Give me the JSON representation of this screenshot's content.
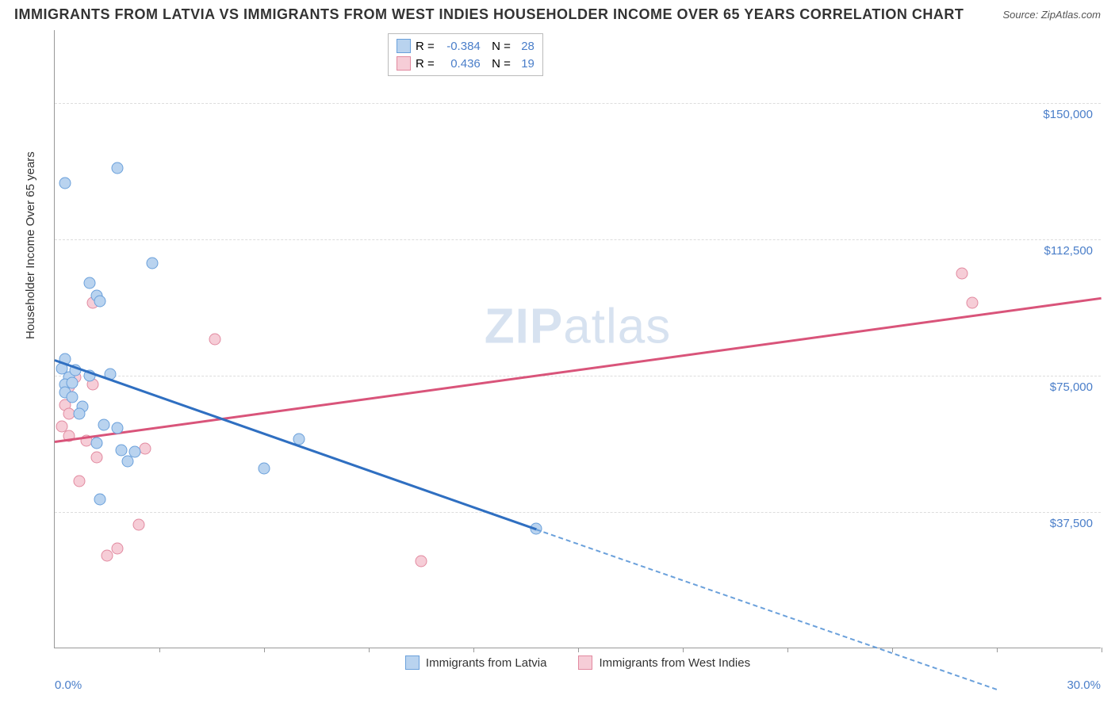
{
  "title": "IMMIGRANTS FROM LATVIA VS IMMIGRANTS FROM WEST INDIES HOUSEHOLDER INCOME OVER 65 YEARS CORRELATION CHART",
  "source": "Source: ZipAtlas.com",
  "watermark_a": "ZIP",
  "watermark_b": "atlas",
  "chart": {
    "type": "scatter-correlation",
    "ylabel": "Householder Income Over 65 years",
    "xlim": [
      0,
      30
    ],
    "ylim": [
      0,
      170000
    ],
    "x_unit": "%",
    "y_unit": "$",
    "xtick_labels": [
      "0.0%",
      "30.0%"
    ],
    "xtick_positions_pct": [
      0,
      100
    ],
    "xtick_marks_pct": [
      10,
      20,
      30,
      40,
      50,
      60,
      70,
      80,
      90,
      100
    ],
    "ytick_labels": [
      "$37,500",
      "$75,000",
      "$112,500",
      "$150,000"
    ],
    "ytick_values": [
      37500,
      75000,
      112500,
      150000
    ],
    "grid_color": "#dddddd",
    "background_color": "#ffffff",
    "axis_color": "#999999",
    "label_color": "#4a7ec9",
    "series": [
      {
        "key": "latvia",
        "name": "Immigrants from Latvia",
        "fill": "#b9d3ef",
        "stroke": "#6aa0db",
        "line_color": "#2f6fc1",
        "R": "-0.384",
        "N": "28",
        "points": [
          [
            0.3,
            128000
          ],
          [
            1.8,
            132000
          ],
          [
            2.8,
            106000
          ],
          [
            1.0,
            100500
          ],
          [
            1.2,
            97000
          ],
          [
            1.3,
            95500
          ],
          [
            0.3,
            79500
          ],
          [
            0.2,
            77000
          ],
          [
            0.4,
            74500
          ],
          [
            0.6,
            76500
          ],
          [
            1.0,
            75000
          ],
          [
            1.6,
            75500
          ],
          [
            0.3,
            72500
          ],
          [
            0.5,
            73000
          ],
          [
            0.3,
            70500
          ],
          [
            0.5,
            69000
          ],
          [
            0.8,
            66500
          ],
          [
            0.7,
            64500
          ],
          [
            1.4,
            61500
          ],
          [
            1.8,
            60500
          ],
          [
            1.9,
            54500
          ],
          [
            2.3,
            54000
          ],
          [
            2.1,
            51500
          ],
          [
            1.2,
            56500
          ],
          [
            7.0,
            57500
          ],
          [
            6.0,
            49500
          ],
          [
            1.3,
            41000
          ],
          [
            13.8,
            33000
          ]
        ],
        "trend": {
          "x1": 0.0,
          "y1": 79500,
          "x2": 13.8,
          "y2": 33000,
          "extend_x2": 27.0,
          "extend_y2": -11000
        }
      },
      {
        "key": "westindies",
        "name": "Immigrants from West Indies",
        "fill": "#f6cdd7",
        "stroke": "#e28aa0",
        "line_color": "#d9547a",
        "R": "0.436",
        "N": "19",
        "points": [
          [
            1.1,
            95000
          ],
          [
            4.6,
            85000
          ],
          [
            0.6,
            74500
          ],
          [
            0.4,
            72000
          ],
          [
            1.1,
            72500
          ],
          [
            0.3,
            67000
          ],
          [
            0.4,
            64500
          ],
          [
            0.2,
            61000
          ],
          [
            0.4,
            58500
          ],
          [
            0.9,
            57000
          ],
          [
            1.2,
            52500
          ],
          [
            2.6,
            55000
          ],
          [
            0.7,
            46000
          ],
          [
            2.4,
            34000
          ],
          [
            1.8,
            27500
          ],
          [
            1.5,
            25500
          ],
          [
            10.5,
            24000
          ],
          [
            26.0,
            103000
          ],
          [
            26.3,
            95000
          ]
        ],
        "trend": {
          "x1": 0.0,
          "y1": 57000,
          "x2": 30.0,
          "y2": 96500
        }
      }
    ]
  }
}
